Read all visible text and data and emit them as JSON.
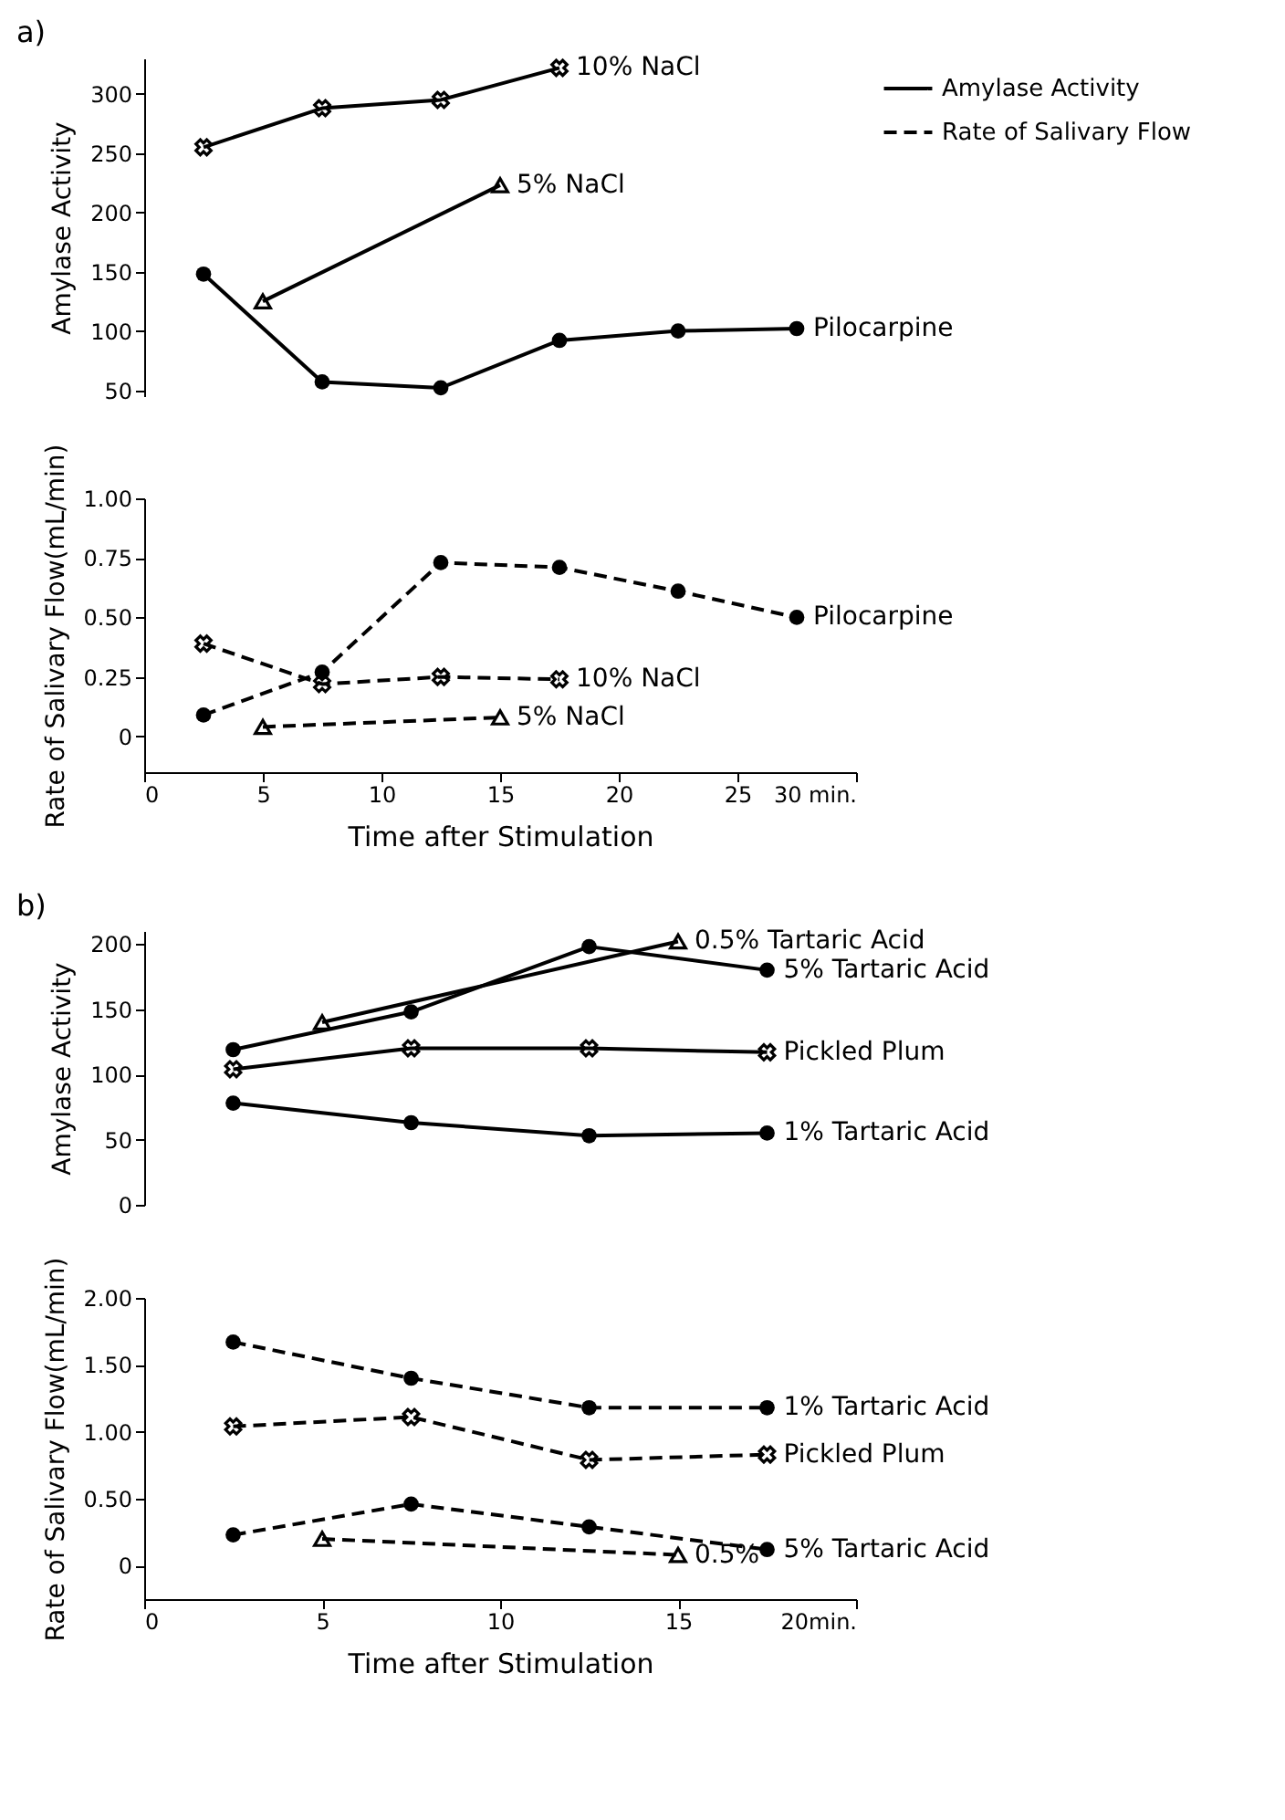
{
  "chart_data": [
    {
      "type": "line",
      "title": "a)",
      "ylabel": "Amylase Activity",
      "xlim": [
        0,
        30
      ],
      "ylim": [
        45,
        330
      ],
      "yticks": [
        50,
        100,
        150,
        200,
        250,
        300
      ],
      "tick_labels": "y",
      "legend": "right",
      "annotations": [
        "Amylase Activity",
        "Rate of Salivary Flow"
      ],
      "series": [
        {
          "name": "10% NaCl",
          "color": "#000000",
          "marker": "cross",
          "line_style": "solid",
          "x": [
            2.5,
            7.5,
            12.5,
            17.5
          ],
          "values": [
            255,
            288,
            295,
            322
          ]
        },
        {
          "name": "5% NaCl",
          "color": "#000000",
          "marker": "triangle",
          "line_style": "solid",
          "x": [
            5,
            15
          ],
          "values": [
            125,
            223
          ]
        },
        {
          "name": "Pilocarpine",
          "color": "#000000",
          "marker": "circle",
          "line_style": "solid",
          "x": [
            2.5,
            7.5,
            12.5,
            17.5,
            22.5,
            27.5
          ],
          "values": [
            148,
            57,
            52,
            92,
            100,
            102
          ]
        }
      ]
    },
    {
      "type": "line",
      "xlabel": "Time after Stimulation",
      "ylabel": "Rate of Salivary Flow(mL/min)",
      "xlim": [
        0,
        30
      ],
      "ylim": [
        -0.15,
        1.0
      ],
      "xticks": [
        0,
        5,
        10,
        15,
        20,
        25,
        {
          "value": 30,
          "label": "30 min."
        }
      ],
      "yticks": [
        0,
        0.25,
        {
          "value": 0.5,
          "label": "0.50"
        },
        0.75,
        {
          "value": 1,
          "label": "1.00"
        }
      ],
      "series": [
        {
          "name": "Pilocarpine",
          "color": "#000000",
          "marker": "circle",
          "line_style": "dashed",
          "x": [
            2.5,
            7.5,
            12.5,
            17.5,
            22.5,
            27.5
          ],
          "values": [
            0.09,
            0.27,
            0.73,
            0.71,
            0.61,
            0.5
          ]
        },
        {
          "name": "10% NaCl",
          "color": "#000000",
          "marker": "cross",
          "line_style": "dashed",
          "x": [
            2.5,
            7.5,
            12.5,
            17.5
          ],
          "values": [
            0.39,
            0.22,
            0.25,
            0.24
          ]
        },
        {
          "name": "5% NaCl",
          "color": "#000000",
          "marker": "triangle",
          "line_style": "dashed",
          "x": [
            5,
            15
          ],
          "values": [
            0.04,
            0.08
          ]
        }
      ]
    },
    {
      "type": "line",
      "title": "b)",
      "ylabel": "Amylase Activity",
      "xlim": [
        0,
        20
      ],
      "ylim": [
        0,
        210
      ],
      "yticks": [
        0,
        50,
        100,
        150,
        200
      ],
      "tick_labels": "y",
      "series": [
        {
          "name": "0.5% Tartaric Acid",
          "color": "#000000",
          "marker": "triangle",
          "line_style": "solid",
          "x": [
            5,
            15
          ],
          "values": [
            140,
            202
          ]
        },
        {
          "name": "5% Tartaric Acid",
          "color": "#000000",
          "marker": "circle",
          "line_style": "solid",
          "x": [
            2.5,
            7.5,
            12.5,
            17.5
          ],
          "values": [
            119,
            148,
            198,
            180
          ]
        },
        {
          "name": "Pickled Plum",
          "color": "#000000",
          "marker": "cross",
          "line_style": "solid",
          "x": [
            2.5,
            7.5,
            12.5,
            17.5
          ],
          "values": [
            104,
            120,
            120,
            117
          ]
        },
        {
          "name": "1% Tartaric Acid",
          "color": "#000000",
          "marker": "circle",
          "line_style": "solid",
          "x": [
            2.5,
            7.5,
            12.5,
            17.5
          ],
          "values": [
            78,
            63,
            53,
            55
          ]
        }
      ]
    },
    {
      "type": "line",
      "xlabel": "Time after Stimulation",
      "ylabel": "Rate of Salivary Flow(mL/min)",
      "xlim": [
        0,
        20
      ],
      "ylim": [
        -0.25,
        2.0
      ],
      "xticks": [
        0,
        5,
        10,
        15,
        {
          "value": 20,
          "label": "20min."
        }
      ],
      "yticks": [
        0,
        {
          "value": 0.5,
          "label": "0.50"
        },
        {
          "value": 1,
          "label": "1.00"
        },
        {
          "value": 1.5,
          "label": "1.50"
        },
        {
          "value": 2,
          "label": "2.00"
        }
      ],
      "series": [
        {
          "name": "1% Tartaric Acid",
          "color": "#000000",
          "marker": "circle",
          "line_style": "dashed",
          "x": [
            2.5,
            7.5,
            12.5,
            17.5
          ],
          "values": [
            1.67,
            1.4,
            1.18,
            1.18
          ]
        },
        {
          "name": "Pickled Plum",
          "color": "#000000",
          "marker": "cross",
          "line_style": "dashed",
          "x": [
            2.5,
            7.5,
            12.5,
            17.5
          ],
          "values": [
            1.04,
            1.11,
            0.79,
            0.83
          ]
        },
        {
          "name": "5% Tartaric Acid",
          "color": "#000000",
          "marker": "circle",
          "line_style": "dashed",
          "x": [
            2.5,
            7.5,
            12.5,
            17.5
          ],
          "values": [
            0.23,
            0.46,
            0.29,
            0.12
          ]
        },
        {
          "name": "0.5%",
          "color": "#000000",
          "marker": "triangle",
          "line_style": "dashed",
          "x": [
            5,
            15
          ],
          "values": [
            0.2,
            0.08
          ]
        }
      ]
    }
  ]
}
